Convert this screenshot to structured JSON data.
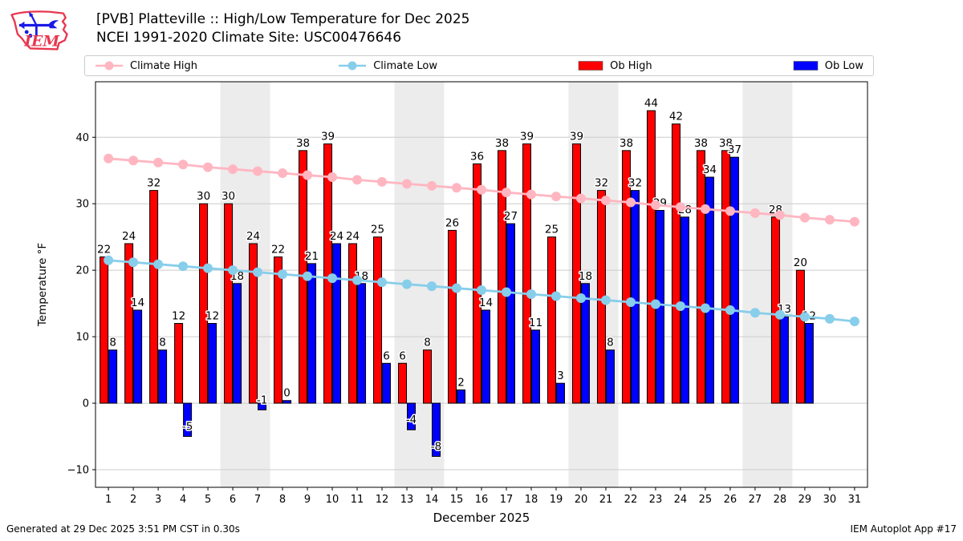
{
  "header": {
    "logo_text": "IEM"
  },
  "legend": {
    "items": [
      {
        "label": "Climate High",
        "type": "line",
        "color": "#ffb6c1"
      },
      {
        "label": "Climate Low",
        "type": "line",
        "color": "#87ceeb"
      },
      {
        "label": "Ob High",
        "type": "patch",
        "color": "#ff0000"
      },
      {
        "label": "Ob Low",
        "type": "patch",
        "color": "#0000ff"
      }
    ]
  },
  "footer": {
    "left": "Generated at 29 Dec 2025 3:51 PM CST in 0.30s",
    "right": "IEM Autoplot App #17"
  },
  "chart_data": {
    "type": "bar",
    "title": "[PVB] Platteville :: High/Low Temperature for Dec 2025",
    "subtitle": "NCEI 1991-2020 Climate Site: USC00476646",
    "xlabel": "December 2025",
    "ylabel": "Temperature °F",
    "days": [
      1,
      2,
      3,
      4,
      5,
      6,
      7,
      8,
      9,
      10,
      11,
      12,
      13,
      14,
      15,
      16,
      17,
      18,
      19,
      20,
      21,
      22,
      23,
      24,
      25,
      26,
      27,
      28,
      29,
      30,
      31
    ],
    "yticks": [
      -10,
      0,
      10,
      20,
      30,
      40
    ],
    "ylim": [
      -12.65,
      48.35
    ],
    "xlim": [
      0.48,
      31.52
    ],
    "grid": true,
    "legend_position": "top",
    "weekend_bands": [
      [
        5.5,
        7.5
      ],
      [
        12.5,
        14.5
      ],
      [
        19.5,
        21.5
      ],
      [
        26.5,
        28.5
      ]
    ],
    "band_color": "#ececec",
    "grid_color": "#cccccc",
    "series": [
      {
        "name": "Climate High",
        "type": "line",
        "color": "#ffb6c1",
        "values": [
          36.8,
          36.5,
          36.2,
          35.9,
          35.5,
          35.2,
          34.9,
          34.6,
          34.3,
          34.0,
          33.6,
          33.3,
          33.0,
          32.7,
          32.4,
          32.1,
          31.7,
          31.4,
          31.1,
          30.8,
          30.5,
          30.2,
          29.8,
          29.5,
          29.2,
          28.9,
          28.6,
          28.3,
          27.9,
          27.6,
          27.3
        ]
      },
      {
        "name": "Climate Low",
        "type": "line",
        "color": "#87ceeb",
        "values": [
          21.5,
          21.2,
          20.9,
          20.6,
          20.3,
          20.0,
          19.7,
          19.4,
          19.1,
          18.8,
          18.5,
          18.2,
          17.9,
          17.6,
          17.3,
          17.0,
          16.7,
          16.4,
          16.1,
          15.8,
          15.5,
          15.2,
          14.9,
          14.6,
          14.3,
          14.0,
          13.6,
          13.3,
          13.0,
          12.7,
          12.3
        ]
      },
      {
        "name": "Ob High",
        "type": "bar",
        "side": "left",
        "color": "#ff0000",
        "values": [
          22,
          24,
          32,
          12,
          30,
          30,
          24,
          22,
          38,
          39,
          24,
          25,
          6,
          8,
          26,
          36,
          38,
          39,
          25,
          39,
          32,
          38,
          44,
          42,
          38,
          38,
          null,
          28,
          20,
          null,
          null
        ]
      },
      {
        "name": "Ob Low",
        "type": "bar",
        "side": "right",
        "color": "#0000ff",
        "values": [
          8,
          14,
          8,
          -5,
          12,
          18,
          -1,
          0,
          21,
          24,
          18,
          6,
          -4,
          -8,
          2,
          14,
          27,
          11,
          3,
          18,
          8,
          32,
          29,
          28,
          34,
          37,
          null,
          13,
          12,
          null,
          null
        ]
      }
    ]
  }
}
